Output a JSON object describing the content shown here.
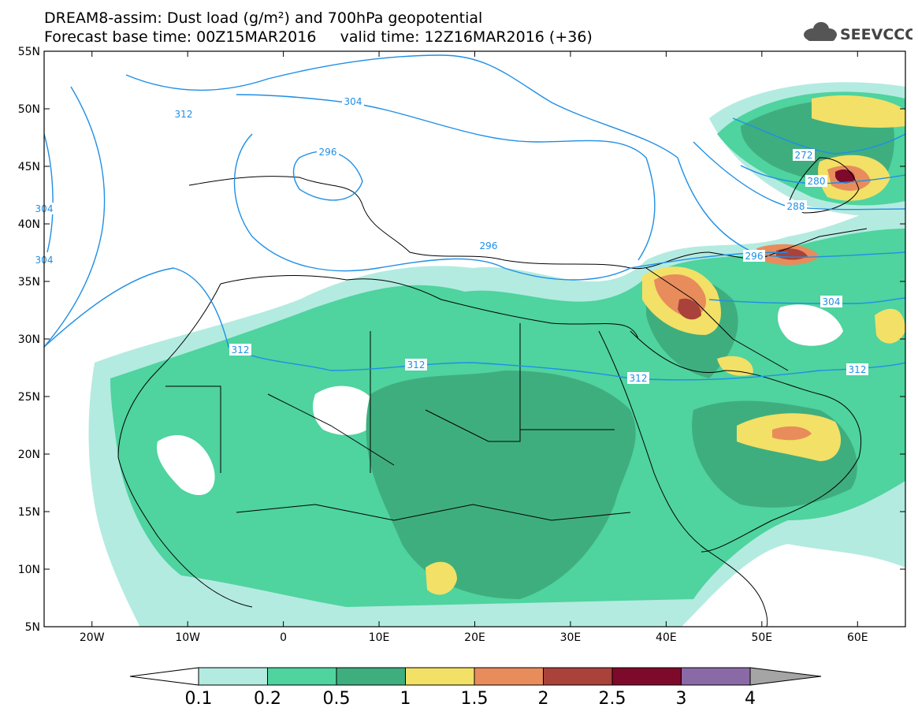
{
  "header": {
    "title_line1": "DREAM8-assim: Dust load (g/m²) and 700hPa geopotential",
    "title_line2": "Forecast base time: 00Z15MAR2016     valid time: 12Z16MAR2016 (+36)",
    "logo_text": "SEEVCCC"
  },
  "axes": {
    "lat_labels": [
      "55N",
      "50N",
      "45N",
      "40N",
      "35N",
      "30N",
      "25N",
      "20N",
      "15N",
      "10N",
      "5N"
    ],
    "lon_labels": [
      "20W",
      "10W",
      "0",
      "10E",
      "20E",
      "30E",
      "40E",
      "50E",
      "60E"
    ]
  },
  "contours": {
    "labels": [
      "312",
      "304",
      "296",
      "312",
      "304",
      "272",
      "280",
      "288",
      "296",
      "304",
      "312",
      "312",
      "312",
      "296",
      "304"
    ]
  },
  "colorbar": {
    "labels": [
      "0.1",
      "0.2",
      "0.5",
      "1",
      "1.5",
      "2",
      "2.5",
      "3",
      "4"
    ],
    "colors": [
      "#b3ebe0",
      "#4fd39f",
      "#3fae7e",
      "#f3e066",
      "#e88c5c",
      "#a8423a",
      "#7d0a2a",
      "#8a6aa6",
      "#a5a5a5"
    ]
  },
  "colors": {
    "contour": "#1f8fe6",
    "border": "#000000",
    "dust_light": "#b3ebe0",
    "dust_mid": "#4fd39f",
    "dust_dark": "#3fae7e",
    "dust_yellow": "#f3e066",
    "dust_orange": "#e88c5c",
    "dust_brown": "#a8423a",
    "dust_maroon": "#7d0a2a"
  }
}
